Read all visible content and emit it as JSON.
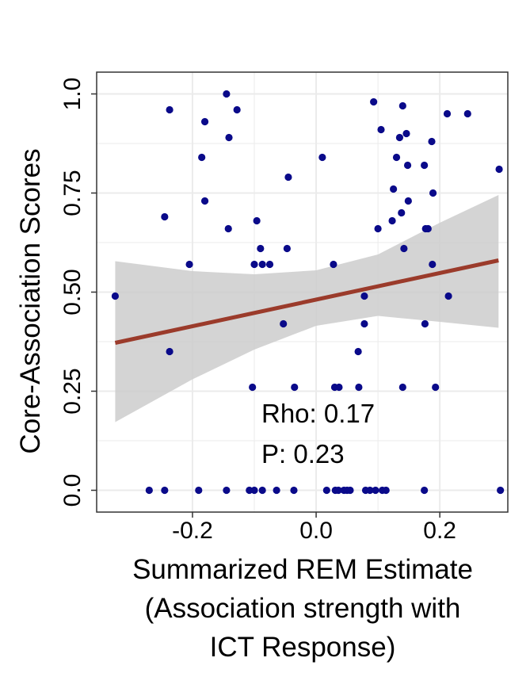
{
  "chart_data": {
    "type": "scatter",
    "xlabel_lines": [
      "Summarized REM Estimate",
      "(Association strength with",
      "ICT Response)"
    ],
    "ylabel": "Core-Association Scores",
    "xlim": [
      -0.355,
      0.31
    ],
    "ylim": [
      -0.055,
      1.055
    ],
    "x_ticks": [
      -0.2,
      0.0,
      0.2
    ],
    "x_tick_labels": [
      "-0.2",
      "0.0",
      "0.2"
    ],
    "y_ticks": [
      0.0,
      0.25,
      0.5,
      0.75,
      1.0
    ],
    "y_tick_labels": [
      "0.0",
      "0.25",
      "0.50",
      "0.75",
      "1.0"
    ],
    "grid": true,
    "colors": {
      "points": "#0a0a8a",
      "fit_line": "#9b3b2b",
      "ci_band": "#cccccc",
      "grid": "#ebebeb",
      "axis": "#333333"
    },
    "annotations": [
      "Rho: 0.17",
      "P: 0.23"
    ],
    "fit_line": {
      "x": [
        -0.325,
        0.295
      ],
      "y": [
        0.372,
        0.58
      ]
    },
    "ci_band": {
      "x": [
        -0.325,
        -0.2,
        -0.1,
        0.0,
        0.1,
        0.2,
        0.295
      ],
      "upper": [
        0.578,
        0.553,
        0.545,
        0.555,
        0.595,
        0.675,
        0.745
      ],
      "lower": [
        0.172,
        0.28,
        0.355,
        0.415,
        0.44,
        0.425,
        0.41
      ]
    },
    "points": {
      "x": [
        -0.325,
        -0.27,
        -0.245,
        -0.245,
        -0.237,
        -0.237,
        -0.205,
        -0.19,
        -0.185,
        -0.18,
        -0.18,
        -0.145,
        -0.145,
        -0.142,
        -0.141,
        -0.128,
        -0.108,
        -0.103,
        -0.1,
        -0.1,
        -0.096,
        -0.09,
        -0.087,
        -0.087,
        -0.075,
        -0.064,
        -0.053,
        -0.047,
        -0.045,
        -0.036,
        -0.035,
        0.01,
        0.017,
        0.028,
        0.03,
        0.031,
        0.036,
        0.037,
        0.045,
        0.05,
        0.055,
        0.068,
        0.069,
        0.078,
        0.078,
        0.08,
        0.087,
        0.093,
        0.096,
        0.1,
        0.105,
        0.107,
        0.113,
        0.123,
        0.125,
        0.13,
        0.135,
        0.138,
        0.14,
        0.14,
        0.142,
        0.146,
        0.148,
        0.149,
        0.175,
        0.175,
        0.176,
        0.177,
        0.181,
        0.187,
        0.188,
        0.189,
        0.193,
        0.212,
        0.214,
        0.245,
        0.296,
        0.298
      ],
      "y": [
        0.49,
        0.0,
        0.0,
        0.69,
        0.35,
        0.96,
        0.57,
        0.0,
        0.84,
        0.93,
        0.73,
        0.0,
        1.0,
        0.66,
        0.89,
        0.96,
        0.0,
        0.26,
        0.57,
        0.0,
        0.68,
        0.61,
        0.57,
        0.0,
        0.57,
        0.0,
        0.42,
        0.61,
        0.79,
        0.0,
        0.26,
        0.84,
        0.0,
        0.57,
        0.26,
        0.0,
        0.0,
        0.26,
        0.0,
        0.0,
        0.0,
        0.35,
        0.26,
        0.49,
        0.42,
        0.0,
        0.0,
        0.98,
        0.0,
        0.66,
        0.91,
        0.0,
        0.0,
        0.68,
        0.76,
        0.84,
        0.89,
        0.7,
        0.26,
        0.97,
        0.61,
        0.9,
        0.82,
        0.73,
        0.0,
        0.82,
        0.42,
        0.66,
        0.66,
        0.88,
        0.57,
        0.75,
        0.26,
        0.95,
        0.49,
        0.95,
        0.81,
        0.0
      ]
    }
  }
}
